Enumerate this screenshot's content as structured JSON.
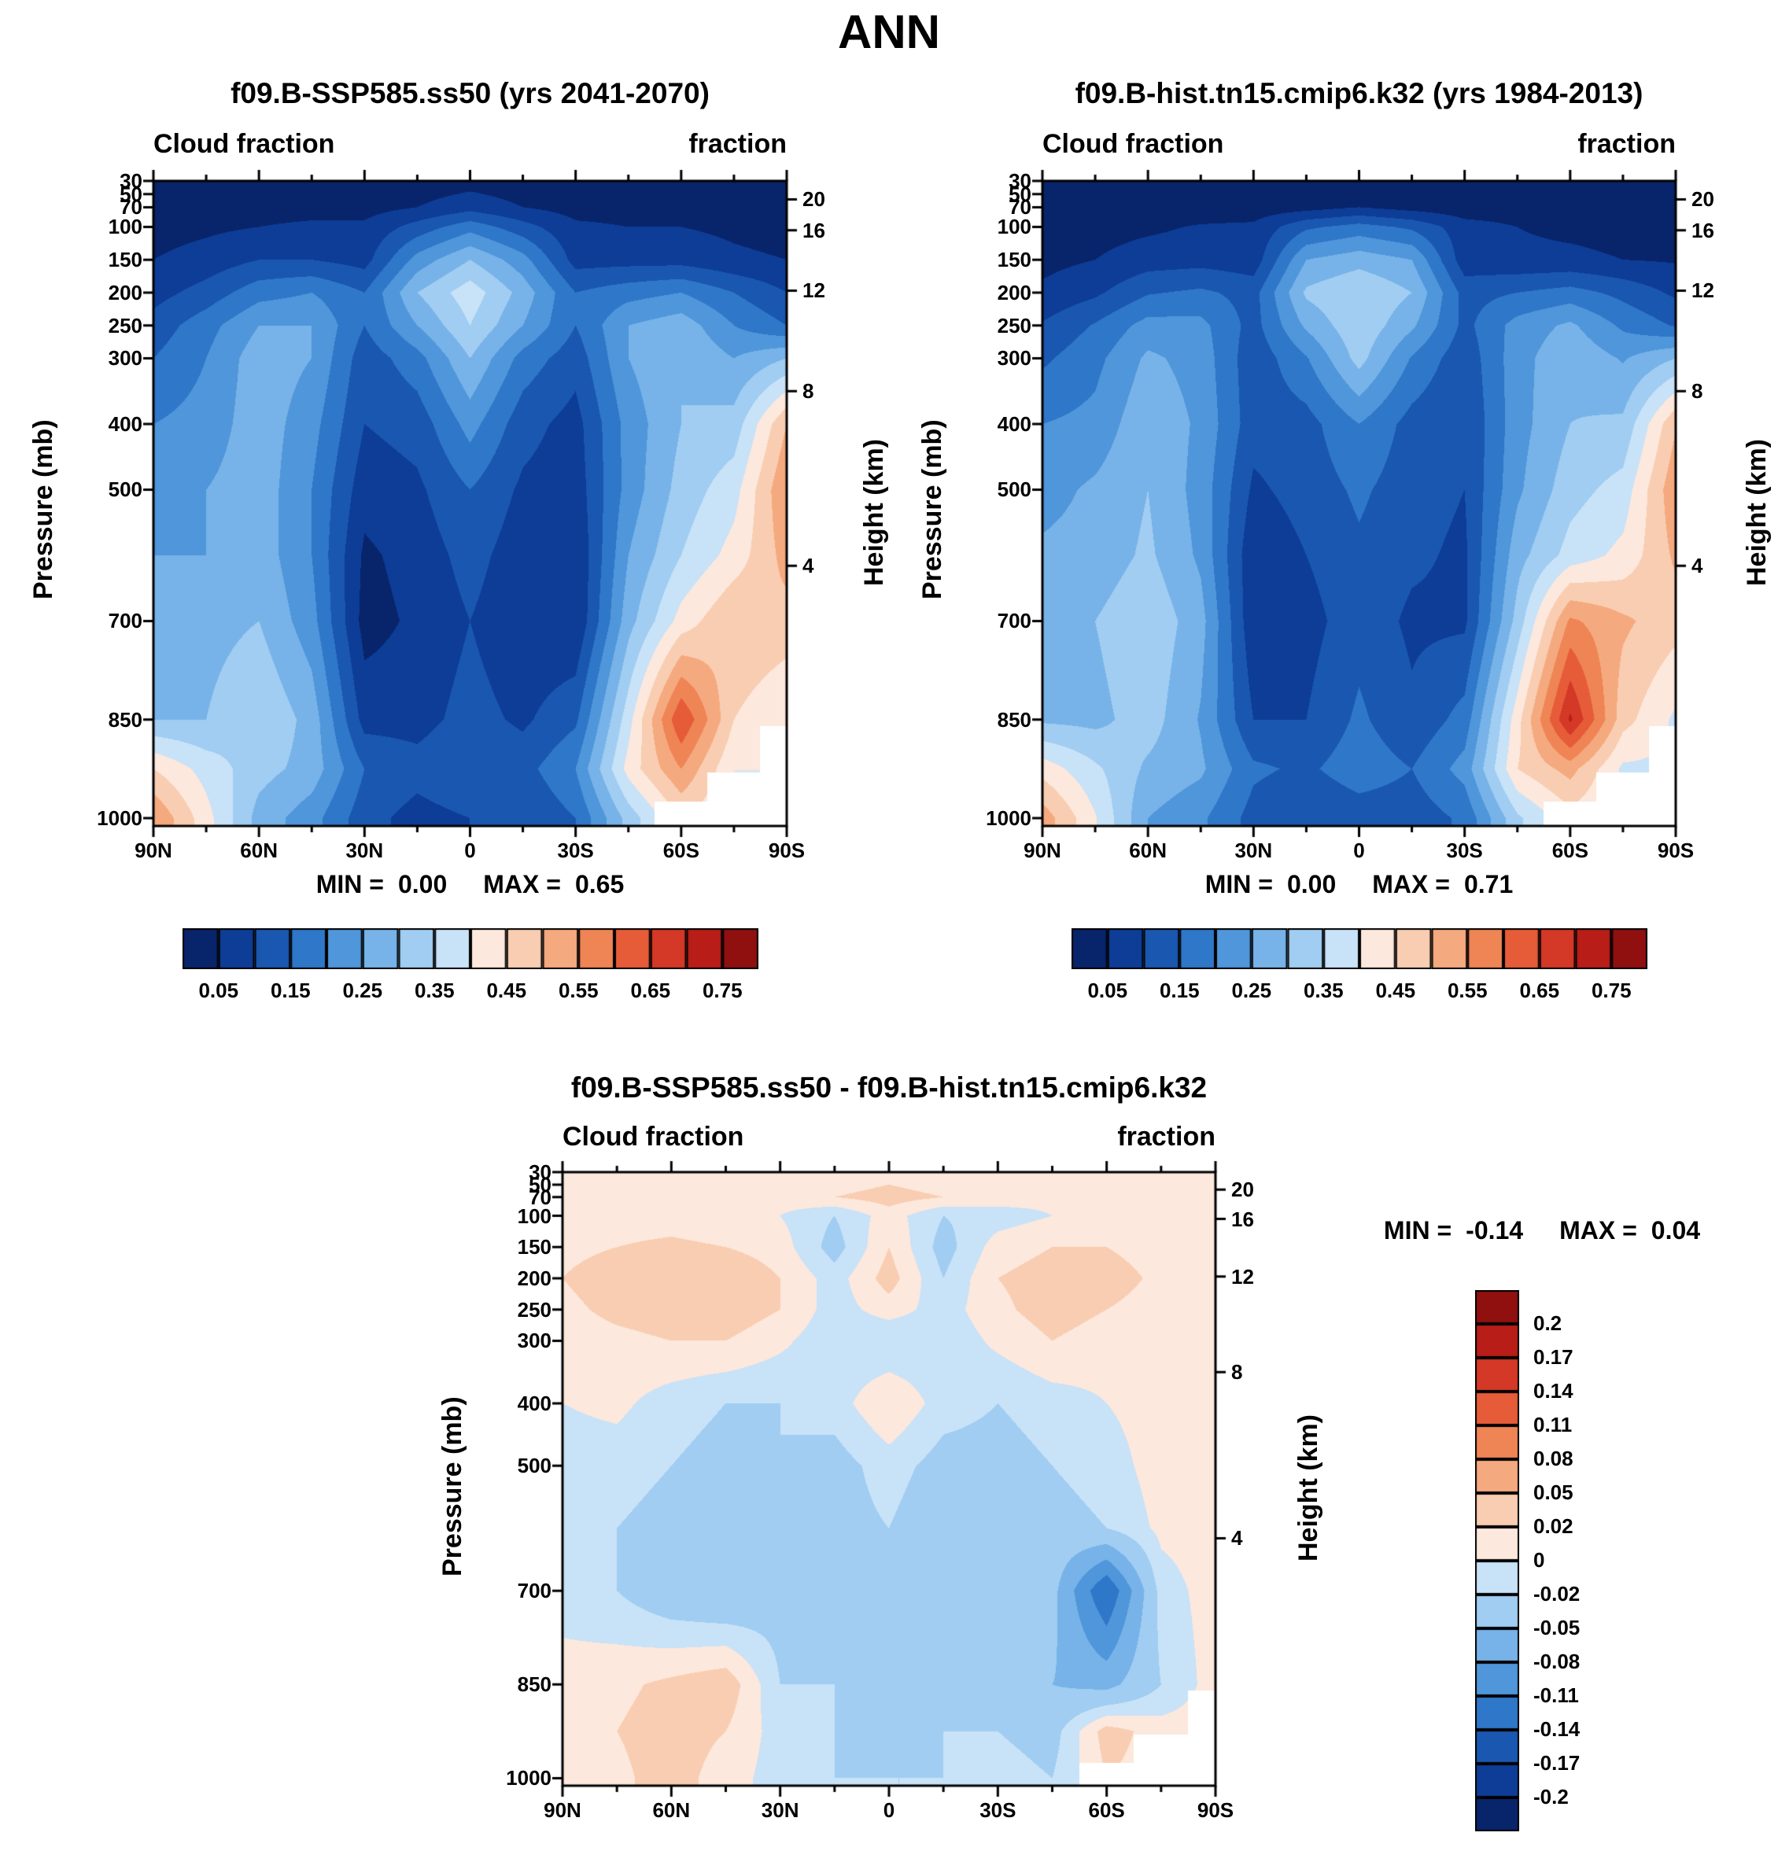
{
  "page": {
    "title": "ANN"
  },
  "axes": {
    "pressure_axis_title": "Pressure (mb)",
    "height_axis_title": "Height (km)",
    "pressure_ticks": [
      30,
      50,
      70,
      100,
      150,
      200,
      250,
      300,
      400,
      500,
      700,
      850,
      1000
    ],
    "height_ticks_km": [
      20,
      16,
      12,
      8,
      4
    ],
    "height_tick_pressures": [
      58,
      105,
      197,
      350,
      616
    ],
    "lat_tick_labels": [
      "90N",
      "60N",
      "30N",
      "0",
      "30S",
      "60S",
      "90S"
    ],
    "lat_tick_values": [
      90,
      60,
      30,
      0,
      -30,
      -60,
      -90
    ],
    "lat_minor_step_deg": 15
  },
  "palette": {
    "colors": [
      "#08246b",
      "#0d3d96",
      "#1a57b0",
      "#2f77c8",
      "#4f96da",
      "#77b3e8",
      "#a0cdf1",
      "#c8e2f8",
      "#fce8dc",
      "#f9cdb1",
      "#f5a97f",
      "#ef8455",
      "#e65c38",
      "#d43826",
      "#b81d18",
      "#8f100f"
    ],
    "cloud_boundaries": [
      0.05,
      0.1,
      0.15,
      0.2,
      0.25,
      0.3,
      0.35,
      0.4,
      0.45,
      0.5,
      0.55,
      0.6,
      0.65,
      0.7,
      0.75
    ],
    "cloud_colorbar_labels": [
      "0.05",
      "0.15",
      "0.25",
      "0.35",
      "0.45",
      "0.55",
      "0.65",
      "0.75"
    ],
    "diff_boundaries": [
      -0.2,
      -0.17,
      -0.14,
      -0.11,
      -0.08,
      -0.05,
      -0.02,
      0,
      0.02,
      0.05,
      0.08,
      0.11,
      0.14,
      0.17,
      0.2
    ],
    "diff_colorbar_labels": [
      "0.2",
      "0.17",
      "0.14",
      "0.11",
      "0.08",
      "0.05",
      "0.02",
      "0",
      "-0.02",
      "-0.05",
      "-0.08",
      "-0.11",
      "-0.14",
      "-0.17",
      "-0.2"
    ]
  },
  "chart_data": [
    {
      "id": "ssp585",
      "type": "heatmap",
      "title": "f09.B-SSP585.ss50 (yrs 2041-2070)",
      "left_header": "Cloud fraction",
      "right_header": "fraction",
      "stats": {
        "min_label": "MIN =",
        "min": "0.00",
        "max_label": "MAX =",
        "max": "0.65"
      },
      "x_units": "degrees latitude (90N to 90S)",
      "y_units": "pressure (mb)",
      "lats": [
        90,
        75,
        60,
        45,
        30,
        15,
        0,
        -15,
        -30,
        -45,
        -60,
        -75,
        -90
      ],
      "levels": [
        30,
        70,
        100,
        150,
        200,
        250,
        300,
        400,
        500,
        600,
        700,
        850,
        925,
        1000
      ],
      "surface_pressure_by_lat": [
        1013,
        1013,
        1013,
        1013,
        1013,
        1013,
        1013,
        1013,
        1013,
        1013,
        975,
        930,
        860
      ],
      "values": [
        [
          0.02,
          0.02,
          0.02,
          0.02,
          0.02,
          0.02,
          0.03,
          0.02,
          0.02,
          0.02,
          0.02,
          0.02,
          0.02
        ],
        [
          0.02,
          0.02,
          0.03,
          0.03,
          0.03,
          0.05,
          0.08,
          0.05,
          0.03,
          0.03,
          0.03,
          0.02,
          0.02
        ],
        [
          0.03,
          0.04,
          0.05,
          0.06,
          0.06,
          0.12,
          0.18,
          0.12,
          0.06,
          0.05,
          0.05,
          0.04,
          0.03
        ],
        [
          0.05,
          0.07,
          0.1,
          0.1,
          0.08,
          0.22,
          0.3,
          0.22,
          0.08,
          0.08,
          0.08,
          0.06,
          0.05
        ],
        [
          0.08,
          0.12,
          0.18,
          0.2,
          0.15,
          0.3,
          0.38,
          0.28,
          0.15,
          0.18,
          0.2,
          0.15,
          0.1
        ],
        [
          0.12,
          0.18,
          0.25,
          0.25,
          0.15,
          0.25,
          0.35,
          0.25,
          0.15,
          0.25,
          0.28,
          0.2,
          0.15
        ],
        [
          0.15,
          0.2,
          0.28,
          0.25,
          0.12,
          0.18,
          0.3,
          0.18,
          0.12,
          0.25,
          0.3,
          0.25,
          0.3
        ],
        [
          0.2,
          0.22,
          0.28,
          0.22,
          0.1,
          0.12,
          0.22,
          0.12,
          0.08,
          0.22,
          0.3,
          0.32,
          0.5
        ],
        [
          0.22,
          0.25,
          0.28,
          0.2,
          0.07,
          0.09,
          0.15,
          0.09,
          0.07,
          0.22,
          0.32,
          0.38,
          0.55
        ],
        [
          0.25,
          0.25,
          0.28,
          0.2,
          0.04,
          0.07,
          0.12,
          0.07,
          0.05,
          0.25,
          0.35,
          0.42,
          0.52
        ],
        [
          0.25,
          0.28,
          0.3,
          0.22,
          0.03,
          0.06,
          0.1,
          0.06,
          0.05,
          0.28,
          0.42,
          0.5,
          0.48
        ],
        [
          0.3,
          0.3,
          0.35,
          0.28,
          0.08,
          0.08,
          0.12,
          0.09,
          0.14,
          0.38,
          0.65,
          0.45,
          0.4
        ],
        [
          0.45,
          0.38,
          0.32,
          0.28,
          0.15,
          0.12,
          0.15,
          0.13,
          0.2,
          0.42,
          0.55,
          0.4,
          0.4
        ],
        [
          0.55,
          0.42,
          0.28,
          0.22,
          0.12,
          0.08,
          0.1,
          0.1,
          0.15,
          0.32,
          0.45,
          0.4,
          0.4
        ]
      ]
    },
    {
      "id": "hist",
      "type": "heatmap",
      "title": "f09.B-hist.tn15.cmip6.k32 (yrs 1984-2013)",
      "left_header": "Cloud fraction",
      "right_header": "fraction",
      "stats": {
        "min_label": "MIN =",
        "min": "0.00",
        "max_label": "MAX =",
        "max": "0.71"
      },
      "x_units": "degrees latitude (90N to 90S)",
      "y_units": "pressure (mb)",
      "lats": [
        90,
        75,
        60,
        45,
        30,
        15,
        0,
        -15,
        -30,
        -45,
        -60,
        -75,
        -90
      ],
      "levels": [
        30,
        70,
        100,
        150,
        200,
        250,
        300,
        400,
        500,
        600,
        700,
        850,
        925,
        1000
      ],
      "surface_pressure_by_lat": [
        1013,
        1013,
        1013,
        1013,
        1013,
        1013,
        1013,
        1013,
        1013,
        1013,
        975,
        930,
        860
      ],
      "values": [
        [
          0.02,
          0.02,
          0.02,
          0.02,
          0.02,
          0.02,
          0.02,
          0.02,
          0.02,
          0.02,
          0.02,
          0.02,
          0.02
        ],
        [
          0.015,
          0.015,
          0.02,
          0.02,
          0.02,
          0.03,
          0.05,
          0.03,
          0.02,
          0.025,
          0.03,
          0.02,
          0.02
        ],
        [
          0.02,
          0.03,
          0.04,
          0.055,
          0.06,
          0.14,
          0.17,
          0.14,
          0.07,
          0.05,
          0.04,
          0.035,
          0.03
        ],
        [
          0.035,
          0.05,
          0.075,
          0.08,
          0.07,
          0.25,
          0.28,
          0.25,
          0.07,
          0.06,
          0.06,
          0.05,
          0.045
        ],
        [
          0.06,
          0.09,
          0.145,
          0.16,
          0.13,
          0.31,
          0.35,
          0.3,
          0.13,
          0.15,
          0.17,
          0.135,
          0.09
        ],
        [
          0.105,
          0.155,
          0.22,
          0.215,
          0.13,
          0.26,
          0.34,
          0.26,
          0.135,
          0.22,
          0.26,
          0.19,
          0.145
        ],
        [
          0.14,
          0.185,
          0.26,
          0.23,
          0.115,
          0.195,
          0.32,
          0.195,
          0.115,
          0.23,
          0.29,
          0.245,
          0.3
        ],
        [
          0.2,
          0.215,
          0.29,
          0.24,
          0.12,
          0.13,
          0.2,
          0.13,
          0.1,
          0.23,
          0.3,
          0.31,
          0.495
        ],
        [
          0.23,
          0.26,
          0.3,
          0.23,
          0.09,
          0.12,
          0.16,
          0.12,
          0.1,
          0.24,
          0.33,
          0.37,
          0.54
        ],
        [
          0.26,
          0.27,
          0.31,
          0.24,
          0.06,
          0.1,
          0.14,
          0.11,
          0.09,
          0.28,
          0.37,
          0.415,
          0.51
        ],
        [
          0.26,
          0.3,
          0.34,
          0.27,
          0.06,
          0.08,
          0.13,
          0.09,
          0.09,
          0.32,
          0.56,
          0.51,
          0.47
        ],
        [
          0.29,
          0.285,
          0.325,
          0.245,
          0.1,
          0.1,
          0.16,
          0.11,
          0.17,
          0.43,
          0.71,
          0.47,
          0.39
        ],
        [
          0.43,
          0.36,
          0.29,
          0.26,
          0.16,
          0.14,
          0.18,
          0.15,
          0.22,
          0.45,
          0.52,
          0.39,
          0.39
        ],
        [
          0.53,
          0.405,
          0.25,
          0.21,
          0.13,
          0.1,
          0.12,
          0.12,
          0.16,
          0.34,
          0.43,
          0.39,
          0.39
        ]
      ]
    },
    {
      "id": "diff",
      "type": "heatmap",
      "title": "f09.B-SSP585.ss50 - f09.B-hist.tn15.cmip6.k32",
      "left_header": "Cloud fraction",
      "right_header": "fraction",
      "stats": {
        "min_label": "MIN =",
        "min": "-0.14",
        "max_label": "MAX =",
        "max": "0.04"
      },
      "x_units": "degrees latitude (90N to 90S)",
      "y_units": "pressure (mb)",
      "lats": [
        90,
        75,
        60,
        45,
        30,
        15,
        0,
        -15,
        -30,
        -45,
        -60,
        -75,
        -90
      ],
      "levels": [
        30,
        70,
        100,
        150,
        200,
        250,
        300,
        400,
        500,
        600,
        700,
        850,
        925,
        1000
      ],
      "surface_pressure_by_lat": [
        1013,
        1013,
        1013,
        1013,
        1013,
        1013,
        1013,
        1013,
        1013,
        1013,
        975,
        930,
        860
      ],
      "values": [
        [
          0,
          0,
          0,
          0,
          0,
          0,
          0.01,
          0,
          0,
          0,
          0,
          0,
          0
        ],
        [
          0.005,
          0.005,
          0.01,
          0.01,
          0.01,
          0.02,
          0.03,
          0.02,
          0.01,
          0.005,
          0,
          0,
          0
        ],
        [
          0.01,
          0.01,
          0.01,
          0.005,
          0,
          -0.02,
          0.01,
          -0.02,
          -0.01,
          0,
          0.01,
          0.005,
          0
        ],
        [
          0.015,
          0.02,
          0.025,
          0.02,
          0.01,
          -0.03,
          0.02,
          -0.03,
          0.01,
          0.02,
          0.02,
          0.01,
          0.005
        ],
        [
          0.02,
          0.03,
          0.035,
          0.04,
          0.02,
          -0.01,
          0.03,
          -0.02,
          0.02,
          0.03,
          0.03,
          0.015,
          0.01
        ],
        [
          0.015,
          0.025,
          0.03,
          0.035,
          0.02,
          -0.01,
          0.01,
          -0.01,
          0.015,
          0.03,
          0.02,
          0.01,
          0.005
        ],
        [
          0.01,
          0.015,
          0.02,
          0.02,
          0.005,
          -0.015,
          -0.02,
          -0.015,
          0.005,
          0.02,
          0.01,
          0.005,
          0
        ],
        [
          0,
          0.005,
          -0.01,
          -0.02,
          -0.02,
          -0.01,
          0.02,
          -0.01,
          -0.02,
          -0.01,
          0,
          0.01,
          0.005
        ],
        [
          -0.01,
          -0.01,
          -0.02,
          -0.03,
          -0.02,
          -0.03,
          -0.01,
          -0.03,
          -0.03,
          -0.02,
          -0.01,
          0.01,
          0.01
        ],
        [
          -0.01,
          -0.02,
          -0.03,
          -0.04,
          -0.02,
          -0.03,
          -0.02,
          -0.04,
          -0.04,
          -0.03,
          -0.02,
          0.005,
          0.01
        ],
        [
          -0.01,
          -0.02,
          -0.04,
          -0.05,
          -0.03,
          -0.02,
          -0.03,
          -0.03,
          -0.04,
          -0.04,
          -0.14,
          -0.01,
          0.01
        ],
        [
          0.01,
          0.015,
          0.025,
          0.035,
          -0.02,
          -0.02,
          -0.04,
          -0.02,
          -0.03,
          -0.05,
          -0.06,
          -0.02,
          0.01
        ],
        [
          0.02,
          0.02,
          0.03,
          0.02,
          -0.01,
          -0.02,
          -0.03,
          -0.02,
          -0.02,
          -0.03,
          0.03,
          0.01,
          0.01
        ],
        [
          0.02,
          0.015,
          0.03,
          0.01,
          -0.01,
          -0.02,
          -0.02,
          -0.02,
          -0.01,
          -0.02,
          0.02,
          0.01,
          0.01
        ]
      ]
    }
  ]
}
